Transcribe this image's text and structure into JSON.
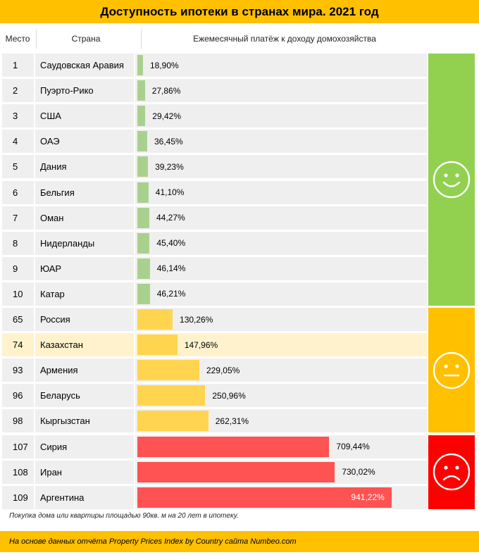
{
  "title": "Доступность ипотеки в странах мира. 2021 год",
  "headers": {
    "rank": "Место",
    "country": "Страна",
    "metric": "Ежемесячный платёж к доходу домохозяйства"
  },
  "colors": {
    "green": "#92d050",
    "green_bar": "#a9d18e",
    "yellow": "#ffc000",
    "yellow_bar": "#ffd54f",
    "red": "#ff0000",
    "red_bar": "#ff5252",
    "highlight_row": "#fff2cc"
  },
  "chart_data": {
    "type": "bar",
    "orientation": "horizontal",
    "title": "Доступность ипотеки в странах мира. 2021 год",
    "xlabel": "Ежемесячный платёж к доходу домохозяйства",
    "xlim": [
      0,
      1000
    ],
    "unit": "%",
    "highlighted": "Казахстан",
    "rows": [
      {
        "rank": "1",
        "country": "Саудовская Аравия",
        "value": 18.9,
        "label": "18,90%",
        "group": "good"
      },
      {
        "rank": "2",
        "country": "Пуэрто-Рико",
        "value": 27.86,
        "label": "27,86%",
        "group": "good"
      },
      {
        "rank": "3",
        "country": "США",
        "value": 29.42,
        "label": "29,42%",
        "group": "good"
      },
      {
        "rank": "4",
        "country": "ОАЭ",
        "value": 36.45,
        "label": "36,45%",
        "group": "good"
      },
      {
        "rank": "5",
        "country": "Дания",
        "value": 39.23,
        "label": "39,23%",
        "group": "good"
      },
      {
        "rank": "6",
        "country": "Бельгия",
        "value": 41.1,
        "label": "41,10%",
        "group": "good"
      },
      {
        "rank": "7",
        "country": "Оман",
        "value": 44.27,
        "label": "44,27%",
        "group": "good"
      },
      {
        "rank": "8",
        "country": "Нидерланды",
        "value": 45.4,
        "label": "45,40%",
        "group": "good"
      },
      {
        "rank": "9",
        "country": "ЮАР",
        "value": 46.14,
        "label": "46,14%",
        "group": "good"
      },
      {
        "rank": "10",
        "country": "Катар",
        "value": 46.21,
        "label": "46,21%",
        "group": "good"
      },
      {
        "rank": "65",
        "country": "Россия",
        "value": 130.26,
        "label": "130,26%",
        "group": "neutral"
      },
      {
        "rank": "74",
        "country": "Казахстан",
        "value": 147.96,
        "label": "147,96%",
        "group": "neutral"
      },
      {
        "rank": "93",
        "country": "Армения",
        "value": 229.05,
        "label": "229,05%",
        "group": "neutral"
      },
      {
        "rank": "96",
        "country": "Беларусь",
        "value": 250.96,
        "label": "250,96%",
        "group": "neutral"
      },
      {
        "rank": "98",
        "country": "Кыргызстан",
        "value": 262.31,
        "label": "262,31%",
        "group": "neutral"
      },
      {
        "rank": "107",
        "country": "Сирия",
        "value": 709.44,
        "label": "709,44%",
        "group": "bad"
      },
      {
        "rank": "108",
        "country": "Иран",
        "value": 730.02,
        "label": "730,02%",
        "group": "bad"
      },
      {
        "rank": "109",
        "country": "Аргентина",
        "value": 941.22,
        "label": "941,22%",
        "group": "bad"
      }
    ],
    "mood_groups": [
      {
        "group": "good",
        "icon": "happy-face-icon",
        "color": "#92d050"
      },
      {
        "group": "neutral",
        "icon": "neutral-face-icon",
        "color": "#ffc000"
      },
      {
        "group": "bad",
        "icon": "sad-face-icon",
        "color": "#ff0000"
      }
    ]
  },
  "footnote": "Покупка дома или квартиры площадью 90кв. м на 20 лет в ипотеку.",
  "source": "На основе данных отчёта Property Prices Index by Country сайта Numbeo.com"
}
